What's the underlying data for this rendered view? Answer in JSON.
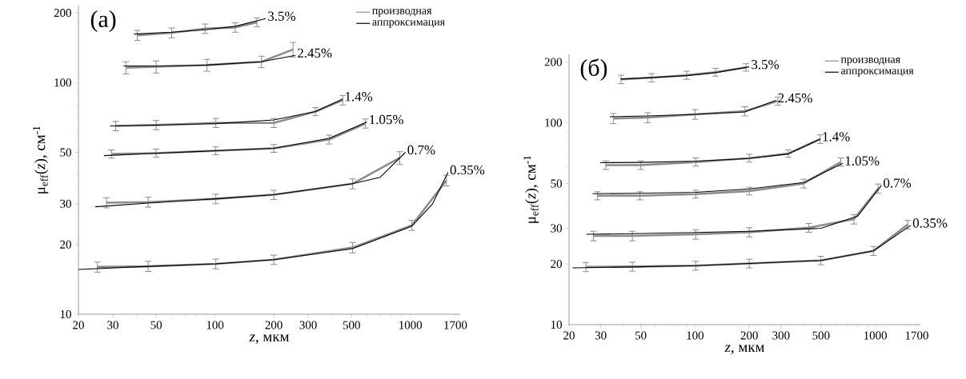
{
  "chart_data": [
    {
      "type": "line",
      "title": "(a)",
      "xlabel": "*z*, мкм",
      "ylabel": "μ$_{eff}$(*z*), см$^{-1}$",
      "log": "xy",
      "legend": "top right",
      "xlim": [
        20,
        1800
      ],
      "ylim": [
        10,
        215
      ],
      "xticks": [
        20,
        30,
        50,
        100,
        200,
        300,
        500,
        1000,
        1700
      ],
      "yticks": [
        10,
        20,
        30,
        50,
        100,
        200
      ],
      "series": [
        {
          "name": "производная",
          "color": "#8c8c8c",
          "x": [
            40,
            60,
            89,
            127,
            164
          ],
          "values": [
            160,
            164,
            171,
            173,
            182
          ],
          "errors": [
            8,
            8,
            8,
            8,
            8
          ]
        },
        {
          "name": "аппроксимация",
          "color": "#000000",
          "x": [
            38.5,
            60,
            89,
            127,
            182
          ],
          "values": [
            162,
            165,
            169,
            175,
            189
          ]
        },
        {
          "color": "#8c8c8c",
          "x": [
            35,
            50,
            91,
            173,
            251
          ],
          "values": [
            116,
            117,
            119,
            123,
            139
          ],
          "errors": [
            7,
            7,
            7,
            7,
            10
          ]
        },
        {
          "color": "#000000",
          "x": [
            34,
            50,
            91,
            173,
            258
          ],
          "values": [
            118,
            118,
            119,
            123,
            131
          ]
        },
        {
          "color": "#8c8c8c",
          "x": [
            31,
            50,
            101,
            200,
            327,
            451
          ],
          "values": [
            65,
            65.6,
            67,
            67,
            75,
            84
          ],
          "errors": [
            3,
            3,
            3,
            3,
            3,
            4
          ]
        },
        {
          "color": "#000000",
          "x": [
            29,
            50,
            101,
            200,
            327,
            451
          ],
          "values": [
            65,
            65.5,
            66.5,
            69,
            75,
            85
          ]
        },
        {
          "color": "#8c8c8c",
          "x": [
            29.5,
            50,
            101,
            200,
            384,
            589
          ],
          "values": [
            49.2,
            49.6,
            50.8,
            52,
            56.8,
            66.6
          ],
          "errors": [
            2,
            2,
            2,
            2,
            2.5,
            3
          ]
        },
        {
          "color": "#000000",
          "x": [
            27,
            50,
            101,
            200,
            384,
            600
          ],
          "values": [
            48.4,
            49.5,
            50.8,
            52,
            57.5,
            67.6
          ]
        },
        {
          "color": "#8c8c8c",
          "x": [
            27.8,
            45.5,
            101,
            200,
            506,
            883
          ],
          "values": [
            30.3,
            30.5,
            31.5,
            32.8,
            36.6,
            47.3
          ],
          "errors": [
            1.5,
            1.5,
            1.5,
            1.5,
            1.8,
            3
          ]
        },
        {
          "color": "#000000",
          "x": [
            24.4,
            45.5,
            101,
            200,
            506,
            700,
            944
          ],
          "values": [
            29.1,
            30.2,
            31.5,
            32.8,
            36.6,
            39,
            50
          ]
        },
        {
          "color": "#8c8c8c",
          "x": [
            25,
            45.5,
            101,
            200,
            506,
            1018,
            1530
          ],
          "values": [
            16,
            16.1,
            16.5,
            17.2,
            19.4,
            24.2,
            37.8
          ],
          "errors": [
            0.8,
            0.8,
            0.8,
            0.8,
            1,
            1.2,
            2
          ]
        },
        {
          "color": "#000000",
          "x": [
            20,
            45.5,
            101,
            200,
            506,
            1018,
            1300,
            1560
          ],
          "values": [
            15.6,
            16.1,
            16.5,
            17.2,
            19.2,
            24,
            30,
            41
          ]
        }
      ],
      "annotations": [
        {
          "text": "3.5%",
          "x": 182,
          "y": 189
        },
        {
          "text": "2.45%",
          "x": 258,
          "y": 131
        },
        {
          "text": "1.4%",
          "x": 451,
          "y": 85
        },
        {
          "text": "1.05%",
          "x": 600,
          "y": 67.6
        },
        {
          "text": "0.7%",
          "x": 944,
          "y": 50
        },
        {
          "text": "0.35%",
          "x": 1560,
          "y": 41
        }
      ]
    },
    {
      "type": "line",
      "title": "(б)",
      "xlabel": "*z*, мкм",
      "ylabel": "μ$_{eff}$(*z*), см$^{-1}$",
      "log": "xy",
      "legend": "top right",
      "xlim": [
        20,
        1780
      ],
      "ylim": [
        10,
        218
      ],
      "xticks": [
        20,
        30,
        50,
        100,
        200,
        300,
        500,
        1000,
        1700
      ],
      "yticks": [
        10,
        20,
        30,
        50,
        100,
        200
      ],
      "series": [
        {
          "name": "производная",
          "color": "#8c8c8c",
          "x": [
            38.9,
            57.4,
            89.8,
            130,
            192
          ],
          "values": [
            164,
            167,
            172,
            178,
            188
          ],
          "errors": [
            8,
            8,
            8,
            8,
            8
          ]
        },
        {
          "name": "аппроксимация",
          "color": "#000000",
          "x": [
            38.6,
            89.8,
            130,
            200
          ],
          "values": [
            164.5,
            171,
            177,
            189
          ]
        },
        {
          "color": "#8c8c8c",
          "x": [
            35.2,
            54.7,
            100,
            189,
            288
          ],
          "values": [
            105,
            106,
            110,
            114,
            128
          ],
          "errors": [
            6,
            6,
            6,
            6,
            6
          ]
        },
        {
          "color": "#000000",
          "x": [
            33.6,
            54.7,
            100,
            189,
            281
          ],
          "values": [
            107,
            108,
            110,
            113,
            129
          ]
        },
        {
          "color": "#8c8c8c",
          "x": [
            32,
            50,
            101,
            200,
            329,
            495
          ],
          "values": [
            61.7,
            61.7,
            63.9,
            66.8,
            70.4,
            83
          ],
          "errors": [
            3,
            3,
            3,
            3,
            3,
            4
          ]
        },
        {
          "color": "#000000",
          "x": [
            29.8,
            50,
            101,
            200,
            329,
            495
          ],
          "values": [
            63.4,
            63.6,
            64.5,
            66.5,
            70,
            83
          ]
        },
        {
          "color": "#8c8c8c",
          "x": [
            28.7,
            49.5,
            101,
            200,
            401,
            644
          ],
          "values": [
            43.5,
            43.5,
            44.3,
            45.9,
            50,
            63.9
          ],
          "errors": [
            2,
            2,
            2,
            2,
            2.5,
            3
          ]
        },
        {
          "color": "#000000",
          "x": [
            27,
            49.5,
            101,
            200,
            401,
            661
          ],
          "values": [
            44.5,
            44.7,
            45.2,
            47,
            50.6,
            63
          ]
        },
        {
          "color": "#8c8c8c",
          "x": [
            27.3,
            44.9,
            101,
            200,
            428,
            762,
            1038
          ],
          "values": [
            27.5,
            27.5,
            28,
            28.7,
            30.2,
            33.3,
            47.2
          ],
          "errors": [
            1.5,
            1.5,
            1.5,
            1.5,
            1.5,
            1.8,
            2.5
          ]
        },
        {
          "color": "#000000",
          "x": [
            25,
            44.9,
            101,
            200,
            500,
            800,
            1081
          ],
          "values": [
            28,
            28.2,
            28.6,
            29,
            30,
            34.5,
            48.9
          ]
        },
        {
          "color": "#8c8c8c",
          "x": [
            24.8,
            44.9,
            101,
            200,
            499,
            977,
            1514
          ],
          "values": [
            19.3,
            19.4,
            19.6,
            20.1,
            20.8,
            23.2,
            31.3
          ],
          "errors": [
            1,
            1,
            1,
            1,
            1,
            1.2,
            1.5
          ]
        },
        {
          "color": "#000000",
          "x": [
            20.9,
            44.9,
            101,
            200,
            499,
            977,
            1574
          ],
          "values": [
            19.1,
            19.3,
            19.6,
            20.1,
            20.8,
            23.2,
            31
          ]
        }
      ],
      "annotations": [
        {
          "text": "3.5%",
          "x": 200,
          "y": 189
        },
        {
          "text": "2.45%",
          "x": 281,
          "y": 129
        },
        {
          "text": "1.4%",
          "x": 495,
          "y": 83
        },
        {
          "text": "1.05%",
          "x": 661,
          "y": 63
        },
        {
          "text": "0.7%",
          "x": 1081,
          "y": 48.9
        },
        {
          "text": "0.35%",
          "x": 1574,
          "y": 31
        }
      ]
    }
  ]
}
